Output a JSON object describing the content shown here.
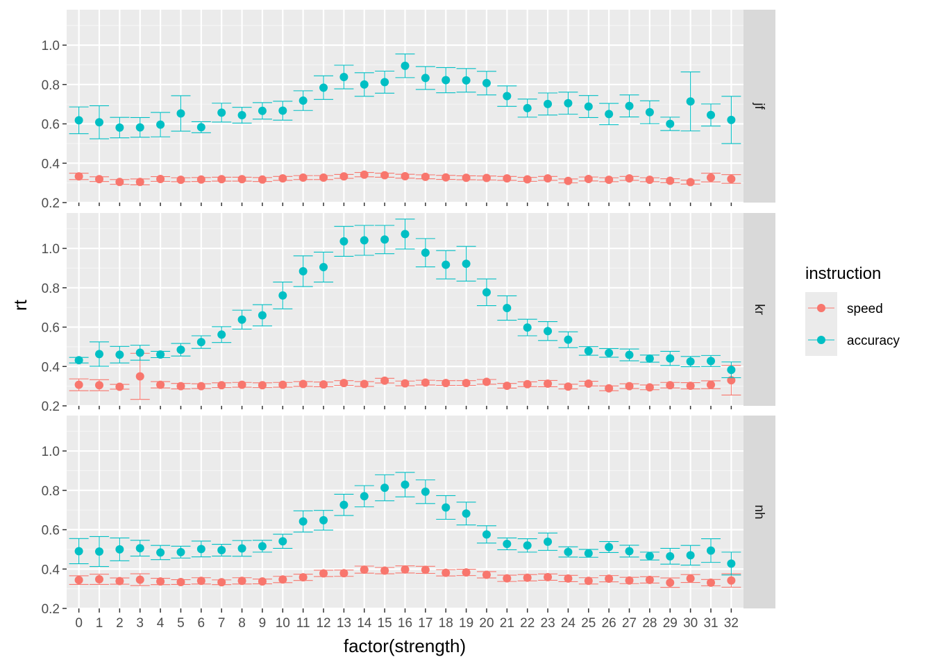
{
  "chart_data": {
    "type": "scatter",
    "xlabel": "factor(strength)",
    "ylabel": "rt",
    "x": [
      0,
      1,
      2,
      3,
      4,
      5,
      6,
      7,
      8,
      9,
      10,
      11,
      12,
      13,
      14,
      15,
      16,
      17,
      18,
      19,
      20,
      21,
      22,
      23,
      24,
      25,
      26,
      27,
      28,
      29,
      30,
      31,
      32
    ],
    "x_tick_labels": [
      "0",
      "1",
      "2",
      "3",
      "4",
      "5",
      "6",
      "7",
      "8",
      "9",
      "10",
      "11",
      "12",
      "13",
      "14",
      "15",
      "16",
      "17",
      "18",
      "19",
      "20",
      "21",
      "22",
      "23",
      "24",
      "25",
      "26",
      "27",
      "28",
      "29",
      "30",
      "31",
      "32"
    ],
    "ylim": [
      0.2,
      1.18
    ],
    "y_ticks": [
      0.2,
      0.4,
      0.6,
      0.8,
      1.0
    ],
    "y_tick_labels": [
      "0.2",
      "0.4",
      "0.6",
      "0.8",
      "1.0"
    ],
    "grid": true,
    "legend": {
      "title": "instruction",
      "position": "right",
      "entries": [
        {
          "label": "speed",
          "color": "#F8766D"
        },
        {
          "label": "accuracy",
          "color": "#00BFC4"
        }
      ]
    },
    "facets": [
      {
        "label": "jf",
        "series": [
          {
            "name": "speed",
            "color": "#F8766D",
            "y": [
              0.333,
              0.319,
              0.305,
              0.305,
              0.32,
              0.316,
              0.317,
              0.319,
              0.319,
              0.317,
              0.323,
              0.327,
              0.327,
              0.333,
              0.342,
              0.339,
              0.334,
              0.331,
              0.328,
              0.326,
              0.325,
              0.323,
              0.318,
              0.323,
              0.31,
              0.32,
              0.316,
              0.323,
              0.316,
              0.311,
              0.304,
              0.327,
              0.32
            ],
            "err": [
              0.016,
              0.012,
              0.012,
              0.015,
              0.012,
              0.01,
              0.01,
              0.01,
              0.01,
              0.01,
              0.01,
              0.01,
              0.01,
              0.01,
              0.011,
              0.01,
              0.01,
              0.01,
              0.01,
              0.01,
              0.01,
              0.01,
              0.01,
              0.01,
              0.01,
              0.01,
              0.01,
              0.01,
              0.01,
              0.01,
              0.01,
              0.022,
              0.022
            ]
          },
          {
            "name": "accuracy",
            "color": "#00BFC4",
            "y": [
              0.618,
              0.608,
              0.581,
              0.582,
              0.596,
              0.653,
              0.583,
              0.657,
              0.644,
              0.666,
              0.667,
              0.718,
              0.784,
              0.838,
              0.8,
              0.812,
              0.895,
              0.833,
              0.822,
              0.821,
              0.807,
              0.741,
              0.68,
              0.701,
              0.705,
              0.688,
              0.65,
              0.691,
              0.659,
              0.6,
              0.714,
              0.645,
              0.62
            ]
          },
          {
            "name": "accuracy_err",
            "color": "#00BFC4",
            "y": [
              0.068,
              0.084,
              0.052,
              0.05,
              0.062,
              0.09,
              0.028,
              0.048,
              0.04,
              0.042,
              0.048,
              0.05,
              0.06,
              0.06,
              0.06,
              0.056,
              0.06,
              0.058,
              0.064,
              0.06,
              0.06,
              0.052,
              0.046,
              0.056,
              0.056,
              0.056,
              0.054,
              0.056,
              0.058,
              0.034,
              0.15,
              0.056,
              0.12
            ]
          }
        ]
      },
      {
        "label": "kr",
        "series": [
          {
            "name": "speed",
            "color": "#F8766D",
            "y": [
              0.307,
              0.305,
              0.297,
              0.35,
              0.307,
              0.3,
              0.3,
              0.305,
              0.307,
              0.305,
              0.307,
              0.311,
              0.309,
              0.316,
              0.311,
              0.328,
              0.314,
              0.318,
              0.316,
              0.316,
              0.322,
              0.302,
              0.31,
              0.313,
              0.298,
              0.313,
              0.289,
              0.3,
              0.294,
              0.305,
              0.302,
              0.307,
              0.33
            ],
            "err": [
              0.03,
              0.028,
              0.012,
              0.117,
              0.016,
              0.014,
              0.012,
              0.012,
              0.012,
              0.012,
              0.012,
              0.012,
              0.012,
              0.012,
              0.012,
              0.012,
              0.012,
              0.012,
              0.012,
              0.012,
              0.012,
              0.012,
              0.012,
              0.016,
              0.012,
              0.012,
              0.012,
              0.012,
              0.012,
              0.014,
              0.016,
              0.02,
              0.075
            ]
          },
          {
            "name": "accuracy",
            "color": "#00BFC4",
            "y": [
              0.432,
              0.463,
              0.46,
              0.47,
              0.461,
              0.485,
              0.524,
              0.562,
              0.638,
              0.66,
              0.761,
              0.884,
              0.905,
              1.036,
              1.041,
              1.045,
              1.073,
              0.978,
              0.917,
              0.922,
              0.777,
              0.697,
              0.598,
              0.58,
              0.536,
              0.479,
              0.469,
              0.459,
              0.44,
              0.441,
              0.425,
              0.428,
              0.383
            ]
          },
          {
            "name": "accuracy_err",
            "color": "#00BFC4",
            "y": [
              0.014,
              0.062,
              0.042,
              0.038,
              0.016,
              0.032,
              0.032,
              0.04,
              0.048,
              0.054,
              0.068,
              0.078,
              0.076,
              0.076,
              0.076,
              0.072,
              0.076,
              0.072,
              0.072,
              0.088,
              0.068,
              0.062,
              0.042,
              0.048,
              0.04,
              0.022,
              0.022,
              0.03,
              0.018,
              0.036,
              0.026,
              0.028,
              0.04
            ]
          }
        ]
      },
      {
        "label": "nh",
        "series": [
          {
            "name": "speed",
            "color": "#F8766D",
            "y": [
              0.344,
              0.348,
              0.339,
              0.346,
              0.337,
              0.334,
              0.34,
              0.333,
              0.34,
              0.337,
              0.347,
              0.358,
              0.378,
              0.379,
              0.397,
              0.392,
              0.398,
              0.396,
              0.381,
              0.383,
              0.371,
              0.353,
              0.356,
              0.359,
              0.352,
              0.34,
              0.351,
              0.342,
              0.345,
              0.331,
              0.352,
              0.331,
              0.342
            ],
            "err": [
              0.022,
              0.026,
              0.016,
              0.03,
              0.016,
              0.012,
              0.016,
              0.012,
              0.016,
              0.012,
              0.016,
              0.016,
              0.016,
              0.016,
              0.018,
              0.016,
              0.018,
              0.018,
              0.016,
              0.016,
              0.016,
              0.016,
              0.016,
              0.016,
              0.016,
              0.016,
              0.016,
              0.016,
              0.016,
              0.024,
              0.02,
              0.016,
              0.034
            ]
          },
          {
            "name": "accuracy",
            "color": "#00BFC4",
            "y": [
              0.491,
              0.489,
              0.5,
              0.506,
              0.484,
              0.486,
              0.502,
              0.496,
              0.505,
              0.516,
              0.541,
              0.642,
              0.648,
              0.726,
              0.77,
              0.813,
              0.829,
              0.793,
              0.713,
              0.682,
              0.576,
              0.528,
              0.52,
              0.539,
              0.487,
              0.48,
              0.512,
              0.491,
              0.466,
              0.465,
              0.47,
              0.494,
              0.428
            ]
          },
          {
            "name": "accuracy_err",
            "color": "#00BFC4",
            "y": [
              0.064,
              0.076,
              0.058,
              0.04,
              0.036,
              0.03,
              0.04,
              0.03,
              0.04,
              0.03,
              0.036,
              0.054,
              0.05,
              0.054,
              0.054,
              0.066,
              0.062,
              0.06,
              0.06,
              0.058,
              0.044,
              0.03,
              0.034,
              0.044,
              0.026,
              0.02,
              0.028,
              0.03,
              0.02,
              0.04,
              0.05,
              0.06,
              0.058
            ]
          }
        ]
      }
    ]
  }
}
